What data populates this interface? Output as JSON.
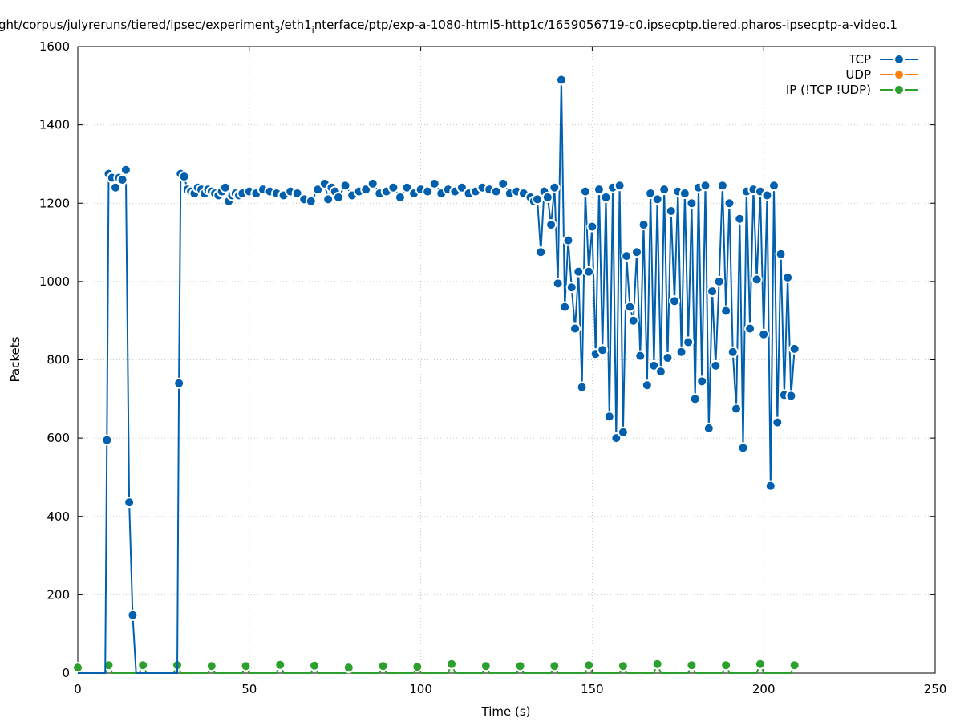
{
  "chart_data": {
    "type": "line",
    "title_main": "ght/corpus/julyreruns/tiered/ipsec/experiment",
    "title_sub": "3",
    "title_mid": "/eth1",
    "title_sub2": "i",
    "title_tail": "nterface/ptp/exp-a-1080-html5-http1c/1659056719-c0.ipsecptp.tiered.pharos-ipsecptp-a-video.1",
    "xlabel": "Time (s)",
    "ylabel": "Packets",
    "xlim": [
      0,
      250
    ],
    "ylim": [
      0,
      1600
    ],
    "xticks": [
      0,
      50,
      100,
      150,
      200,
      250
    ],
    "yticks": [
      0,
      200,
      400,
      600,
      800,
      1000,
      1200,
      1400,
      1600
    ],
    "grid": true,
    "legend_position": "top-right",
    "series": [
      {
        "name": "TCP",
        "color": "#0060ad",
        "points": [
          [
            0,
            0
          ],
          [
            1,
            0
          ],
          [
            2,
            0
          ],
          [
            3,
            0
          ],
          [
            4,
            0
          ],
          [
            5,
            0
          ],
          [
            6,
            0
          ],
          [
            7,
            0
          ],
          [
            8,
            0
          ],
          [
            8.5,
            595
          ],
          [
            9,
            1275
          ],
          [
            10,
            1265
          ],
          [
            11,
            1240
          ],
          [
            12,
            1265
          ],
          [
            13,
            1260
          ],
          [
            14,
            1285
          ],
          [
            15,
            436
          ],
          [
            16,
            148
          ],
          [
            17,
            0
          ],
          [
            18,
            0
          ],
          [
            19,
            0
          ],
          [
            20,
            0
          ],
          [
            21,
            0
          ],
          [
            22,
            0
          ],
          [
            23,
            0
          ],
          [
            24,
            0
          ],
          [
            25,
            0
          ],
          [
            26,
            0
          ],
          [
            27,
            0
          ],
          [
            28,
            0
          ],
          [
            29,
            0
          ],
          [
            29.5,
            740
          ],
          [
            30,
            1275
          ],
          [
            31,
            1268
          ],
          [
            32,
            1235
          ],
          [
            33,
            1230
          ],
          [
            34,
            1225
          ],
          [
            35,
            1240
          ],
          [
            36,
            1235
          ],
          [
            37,
            1225
          ],
          [
            38,
            1235
          ],
          [
            39,
            1230
          ],
          [
            40,
            1225
          ],
          [
            41,
            1220
          ],
          [
            42,
            1230
          ],
          [
            43,
            1240
          ],
          [
            44,
            1205
          ],
          [
            45,
            1220
          ],
          [
            46,
            1225
          ],
          [
            47,
            1220
          ],
          [
            48,
            1225
          ],
          [
            50,
            1230
          ],
          [
            52,
            1225
          ],
          [
            54,
            1235
          ],
          [
            56,
            1230
          ],
          [
            58,
            1225
          ],
          [
            60,
            1220
          ],
          [
            62,
            1230
          ],
          [
            64,
            1225
          ],
          [
            66,
            1210
          ],
          [
            68,
            1205
          ],
          [
            70,
            1235
          ],
          [
            72,
            1250
          ],
          [
            73,
            1210
          ],
          [
            74,
            1240
          ],
          [
            75,
            1230
          ],
          [
            76,
            1215
          ],
          [
            78,
            1245
          ],
          [
            80,
            1220
          ],
          [
            82,
            1230
          ],
          [
            84,
            1235
          ],
          [
            86,
            1250
          ],
          [
            88,
            1225
          ],
          [
            90,
            1230
          ],
          [
            92,
            1240
          ],
          [
            94,
            1215
          ],
          [
            96,
            1240
          ],
          [
            98,
            1225
          ],
          [
            100,
            1235
          ],
          [
            102,
            1230
          ],
          [
            104,
            1250
          ],
          [
            106,
            1225
          ],
          [
            108,
            1235
          ],
          [
            110,
            1230
          ],
          [
            112,
            1240
          ],
          [
            114,
            1225
          ],
          [
            116,
            1230
          ],
          [
            118,
            1240
          ],
          [
            120,
            1235
          ],
          [
            122,
            1230
          ],
          [
            124,
            1250
          ],
          [
            126,
            1225
          ],
          [
            128,
            1230
          ],
          [
            130,
            1225
          ],
          [
            132,
            1215
          ],
          [
            133,
            1205
          ],
          [
            134,
            1210
          ],
          [
            135,
            1075
          ],
          [
            136,
            1230
          ],
          [
            137,
            1215
          ],
          [
            138,
            1145
          ],
          [
            139,
            1240
          ],
          [
            140,
            995
          ],
          [
            141,
            1515
          ],
          [
            142,
            935
          ],
          [
            143,
            1105
          ],
          [
            144,
            985
          ],
          [
            145,
            880
          ],
          [
            146,
            1025
          ],
          [
            147,
            730
          ],
          [
            148,
            1230
          ],
          [
            149,
            1025
          ],
          [
            150,
            1140
          ],
          [
            151,
            815
          ],
          [
            152,
            1235
          ],
          [
            153,
            825
          ],
          [
            154,
            1215
          ],
          [
            155,
            655
          ],
          [
            156,
            1240
          ],
          [
            157,
            600
          ],
          [
            158,
            1245
          ],
          [
            159,
            615
          ],
          [
            160,
            1065
          ],
          [
            161,
            935
          ],
          [
            162,
            900
          ],
          [
            163,
            1075
          ],
          [
            164,
            810
          ],
          [
            165,
            1145
          ],
          [
            166,
            735
          ],
          [
            167,
            1225
          ],
          [
            168,
            785
          ],
          [
            169,
            1210
          ],
          [
            170,
            770
          ],
          [
            171,
            1235
          ],
          [
            172,
            805
          ],
          [
            173,
            1180
          ],
          [
            174,
            950
          ],
          [
            175,
            1230
          ],
          [
            176,
            820
          ],
          [
            177,
            1225
          ],
          [
            178,
            845
          ],
          [
            179,
            1200
          ],
          [
            180,
            700
          ],
          [
            181,
            1240
          ],
          [
            182,
            745
          ],
          [
            183,
            1245
          ],
          [
            184,
            625
          ],
          [
            185,
            975
          ],
          [
            186,
            785
          ],
          [
            187,
            1000
          ],
          [
            188,
            1245
          ],
          [
            189,
            925
          ],
          [
            190,
            1200
          ],
          [
            191,
            820
          ],
          [
            192,
            675
          ],
          [
            193,
            1160
          ],
          [
            194,
            575
          ],
          [
            195,
            1230
          ],
          [
            196,
            880
          ],
          [
            197,
            1235
          ],
          [
            198,
            1005
          ],
          [
            199,
            1230
          ],
          [
            200,
            865
          ],
          [
            201,
            1220
          ],
          [
            202,
            478
          ],
          [
            203,
            1245
          ],
          [
            204,
            640
          ],
          [
            205,
            1070
          ],
          [
            206,
            710
          ],
          [
            207,
            1010
          ],
          [
            208,
            708
          ],
          [
            209,
            828
          ]
        ]
      },
      {
        "name": "UDP",
        "color": "#ff7f0e",
        "points": []
      },
      {
        "name": "IP (!TCP  !UDP)",
        "color": "#2ca02c",
        "points": [
          [
            0,
            14
          ],
          [
            1,
            0
          ],
          [
            2,
            0
          ],
          [
            3,
            0
          ],
          [
            4,
            0
          ],
          [
            5,
            0
          ],
          [
            6,
            0
          ],
          [
            7,
            0
          ],
          [
            8,
            0
          ],
          [
            9,
            20
          ],
          [
            10,
            0
          ],
          [
            11,
            0
          ],
          [
            12,
            0
          ],
          [
            13,
            0
          ],
          [
            14,
            0
          ],
          [
            15,
            0
          ],
          [
            16,
            0
          ],
          [
            17,
            0
          ],
          [
            18,
            0
          ],
          [
            19,
            20
          ],
          [
            20,
            0
          ],
          [
            21,
            0
          ],
          [
            22,
            0
          ],
          [
            23,
            0
          ],
          [
            24,
            0
          ],
          [
            25,
            0
          ],
          [
            26,
            0
          ],
          [
            27,
            0
          ],
          [
            28,
            0
          ],
          [
            29,
            20
          ],
          [
            30,
            0
          ],
          [
            31,
            0
          ],
          [
            32,
            0
          ],
          [
            33,
            0
          ],
          [
            34,
            0
          ],
          [
            35,
            0
          ],
          [
            36,
            0
          ],
          [
            37,
            0
          ],
          [
            38,
            0
          ],
          [
            39,
            18
          ],
          [
            40,
            0
          ],
          [
            41,
            0
          ],
          [
            42,
            0
          ],
          [
            43,
            0
          ],
          [
            44,
            0
          ],
          [
            45,
            0
          ],
          [
            46,
            0
          ],
          [
            47,
            0
          ],
          [
            48,
            0
          ],
          [
            49,
            18
          ],
          [
            50,
            0
          ],
          [
            52,
            0
          ],
          [
            54,
            0
          ],
          [
            56,
            0
          ],
          [
            58,
            0
          ],
          [
            59,
            21
          ],
          [
            60,
            0
          ],
          [
            62,
            0
          ],
          [
            64,
            0
          ],
          [
            66,
            0
          ],
          [
            68,
            0
          ],
          [
            69,
            19
          ],
          [
            70,
            0
          ],
          [
            72,
            0
          ],
          [
            74,
            0
          ],
          [
            76,
            0
          ],
          [
            78,
            0
          ],
          [
            79,
            14
          ],
          [
            80,
            0
          ],
          [
            82,
            0
          ],
          [
            84,
            0
          ],
          [
            86,
            0
          ],
          [
            88,
            0
          ],
          [
            89,
            18
          ],
          [
            90,
            0
          ],
          [
            92,
            0
          ],
          [
            94,
            0
          ],
          [
            96,
            0
          ],
          [
            98,
            0
          ],
          [
            99,
            16
          ],
          [
            100,
            0
          ],
          [
            102,
            0
          ],
          [
            104,
            0
          ],
          [
            106,
            0
          ],
          [
            108,
            0
          ],
          [
            109,
            23
          ],
          [
            110,
            0
          ],
          [
            112,
            0
          ],
          [
            114,
            0
          ],
          [
            116,
            0
          ],
          [
            118,
            0
          ],
          [
            119,
            18
          ],
          [
            120,
            0
          ],
          [
            122,
            0
          ],
          [
            124,
            0
          ],
          [
            126,
            0
          ],
          [
            128,
            0
          ],
          [
            129,
            18
          ],
          [
            130,
            0
          ],
          [
            132,
            0
          ],
          [
            134,
            0
          ],
          [
            136,
            0
          ],
          [
            138,
            0
          ],
          [
            139,
            18
          ],
          [
            140,
            0
          ],
          [
            142,
            0
          ],
          [
            144,
            0
          ],
          [
            146,
            0
          ],
          [
            148,
            0
          ],
          [
            149,
            20
          ],
          [
            150,
            0
          ],
          [
            152,
            0
          ],
          [
            154,
            0
          ],
          [
            156,
            0
          ],
          [
            158,
            0
          ],
          [
            159,
            18
          ],
          [
            160,
            0
          ],
          [
            162,
            0
          ],
          [
            164,
            0
          ],
          [
            166,
            0
          ],
          [
            168,
            0
          ],
          [
            169,
            23
          ],
          [
            170,
            0
          ],
          [
            172,
            0
          ],
          [
            174,
            0
          ],
          [
            176,
            0
          ],
          [
            178,
            0
          ],
          [
            179,
            20
          ],
          [
            180,
            0
          ],
          [
            182,
            0
          ],
          [
            184,
            0
          ],
          [
            186,
            0
          ],
          [
            188,
            0
          ],
          [
            189,
            20
          ],
          [
            190,
            0
          ],
          [
            192,
            0
          ],
          [
            194,
            0
          ],
          [
            196,
            0
          ],
          [
            198,
            0
          ],
          [
            199,
            23
          ],
          [
            200,
            0
          ],
          [
            202,
            0
          ],
          [
            204,
            0
          ],
          [
            206,
            0
          ],
          [
            208,
            0
          ],
          [
            209,
            20
          ]
        ]
      }
    ]
  }
}
